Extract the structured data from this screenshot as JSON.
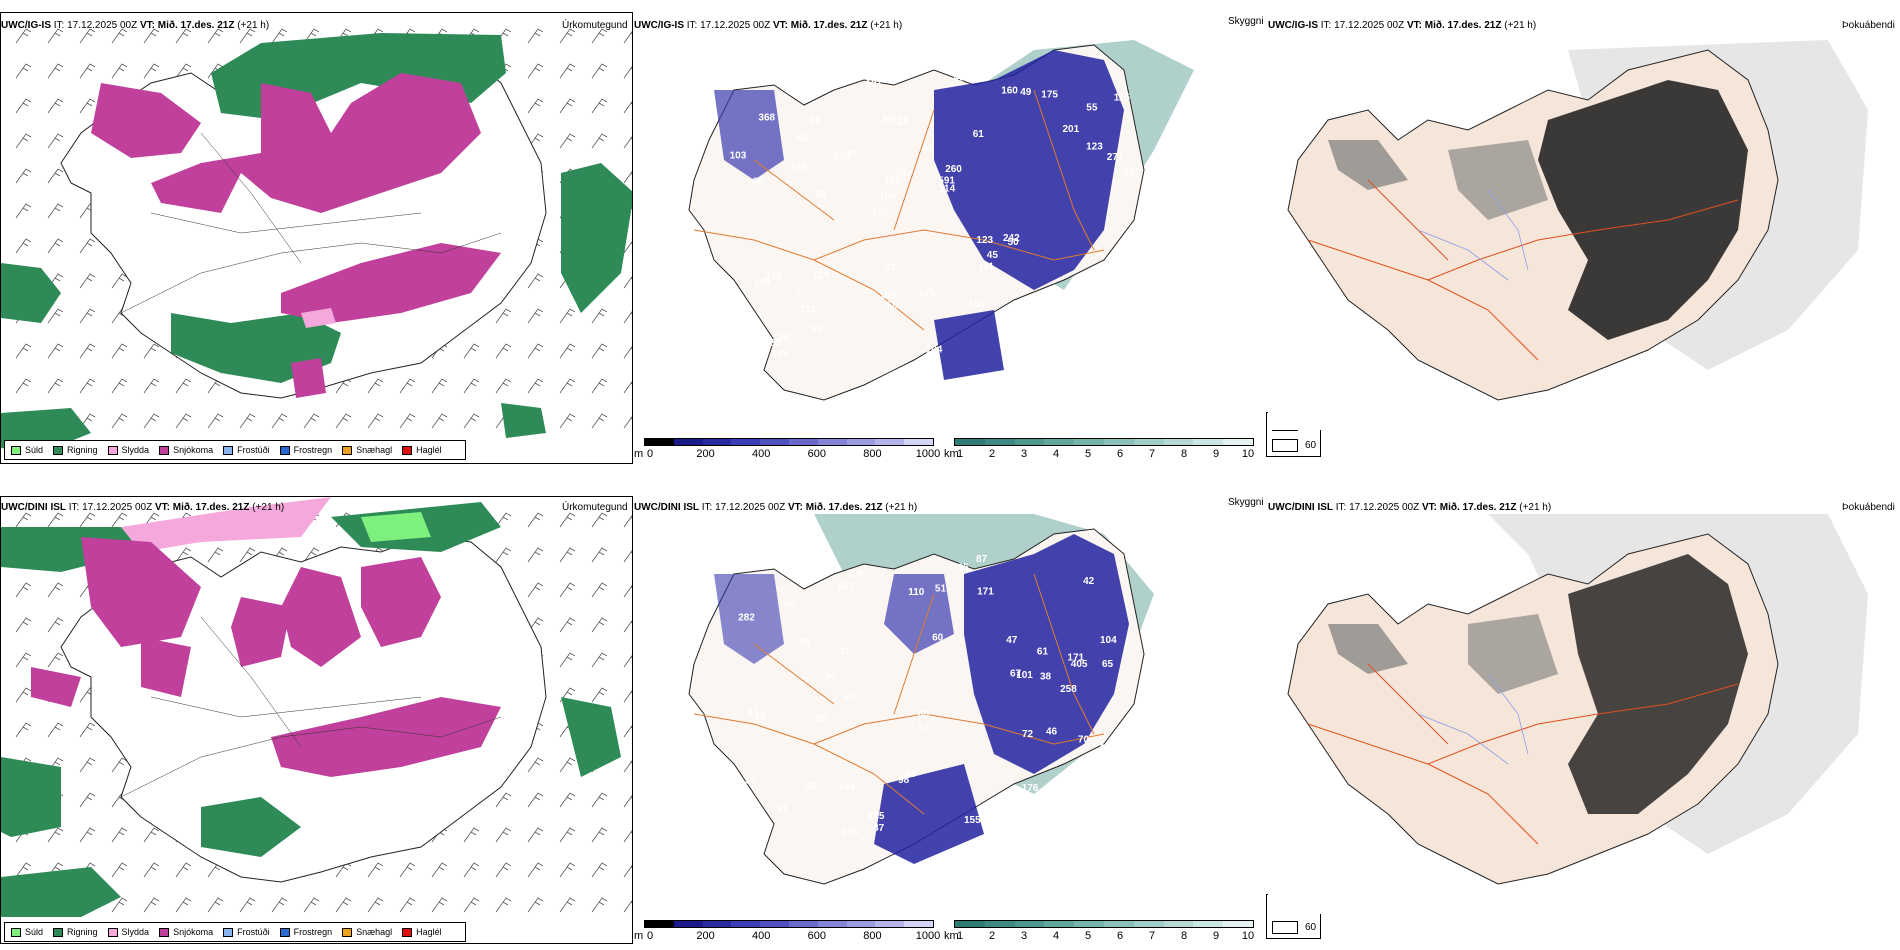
{
  "rows": [
    {
      "model": "UWC/IG-IS",
      "init_label": "IT:",
      "init_time": "17.12.2025 00Z",
      "valid_label": "VT:",
      "valid_time": "Mið. 17.des. 21Z",
      "lead": "(+21 h)",
      "ptype_title": "Úrkomutegund",
      "cloud_title": "Skyggni",
      "fog_title": "Þokuábendi",
      "cloud_labels": [
        "104",
        "68",
        "55",
        "106",
        "61",
        "128",
        "90",
        "97",
        "216",
        "49",
        "79",
        "211",
        "112",
        "260",
        "50",
        "368",
        "239",
        "263",
        "123",
        "123",
        "108",
        "152",
        "109",
        "85",
        "160",
        "124",
        "89",
        "86",
        "242",
        "104",
        "128",
        "246",
        "111",
        "95",
        "271",
        "591",
        "114",
        "58",
        "114",
        "149",
        "201",
        "115",
        "45",
        "156",
        "7",
        "135",
        "74",
        "675",
        "175",
        "196",
        "92",
        "103",
        "45",
        "49",
        "55",
        "49",
        "101",
        "45",
        "58",
        "31"
      ],
      "fog_legend": [
        "0",
        "60"
      ]
    },
    {
      "model": "UWC/DINI ISL",
      "init_label": "IT:",
      "init_time": "17.12.2025 00Z",
      "valid_label": "VT:",
      "valid_time": "Mið. 17.des. 21Z",
      "lead": "(+21 h)",
      "ptype_title": "Úrkomutegund",
      "cloud_title": "Skyggni",
      "fog_title": "Þokuábendi",
      "cloud_labels": [
        "36",
        "104",
        "55",
        "60",
        "47",
        "129",
        "171",
        "144",
        "42",
        "35",
        "65",
        "282",
        "258",
        "87",
        "56",
        "60",
        "51",
        "161",
        "93",
        "405",
        "37",
        "10",
        "155",
        "67",
        "105",
        "98",
        "95",
        "171",
        "47",
        "81",
        "89",
        "176",
        "105",
        "60",
        "70",
        "42",
        "101",
        "110",
        "82",
        "57",
        "46",
        "38",
        "51",
        "54",
        "48",
        "72",
        "61",
        "87",
        "47",
        "61",
        "68",
        "51"
      ],
      "fog_legend": [
        "0",
        "60"
      ]
    }
  ],
  "ptype_legend": [
    {
      "label": "Súld",
      "color": "#7ef07e"
    },
    {
      "label": "Rigning",
      "color": "#2e8b57"
    },
    {
      "label": "Slydda",
      "color": "#f5a8dc"
    },
    {
      "label": "Snjókoma",
      "color": "#c0409c"
    },
    {
      "label": "Frostúði",
      "color": "#8ab4f0"
    },
    {
      "label": "Frostregn",
      "color": "#2a6ad0"
    },
    {
      "label": "Snæhagl",
      "color": "#f0a020"
    },
    {
      "label": "Haglél",
      "color": "#e01010"
    }
  ],
  "ceiling_bar": {
    "unit": "m",
    "ticks": [
      "0",
      "200",
      "400",
      "600",
      "800",
      "1000"
    ],
    "colors": [
      "#000000",
      "#1a1a8a",
      "#2a2aa0",
      "#3c3cb4",
      "#5050c0",
      "#6a6acc",
      "#8484d8",
      "#9c9ce0",
      "#b4b4e8",
      "#d4d4f4"
    ]
  },
  "visibility_bar": {
    "unit": "km",
    "ticks": [
      "1",
      "2",
      "3",
      "4",
      "5",
      "6",
      "7",
      "8",
      "9",
      "10"
    ],
    "colors": [
      "#2e7d74",
      "#3e8a82",
      "#4f988f",
      "#62a69d",
      "#76b3ab",
      "#8ac0b9",
      "#9fcdc7",
      "#b5dad5",
      "#cbe7e3",
      "#e4f3f1"
    ]
  },
  "colors": {
    "land": "#f6e6da",
    "roads": "#e07a30",
    "rain": "#2e8b57",
    "snow": "#c0409c",
    "sleet": "#f5a8dc",
    "drizzle": "#7ef07e",
    "low_cloud": "#1a1a8a",
    "visibility": "#4f988f"
  }
}
